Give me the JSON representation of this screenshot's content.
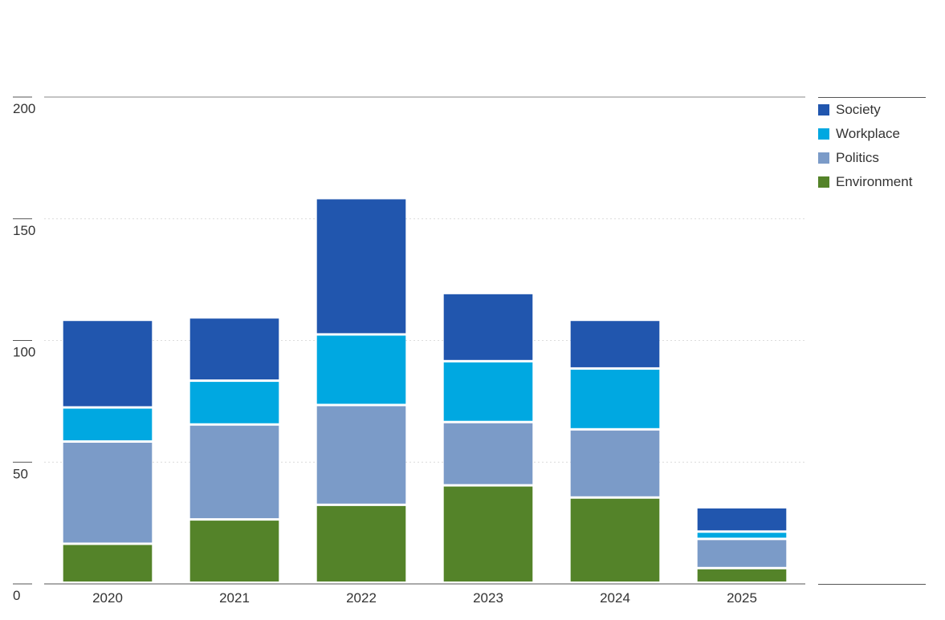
{
  "chart_data": {
    "type": "bar",
    "stacked": true,
    "categories": [
      "2020",
      "2021",
      "2022",
      "2023",
      "2024",
      "2025"
    ],
    "series": [
      {
        "name": "Environment",
        "color": "#548329",
        "values": [
          16,
          26,
          32,
          40,
          35,
          6
        ]
      },
      {
        "name": "Politics",
        "color": "#7b9bc8",
        "values": [
          42,
          39,
          41,
          26,
          28,
          12
        ]
      },
      {
        "name": "Workplace",
        "color": "#00a8e1",
        "values": [
          14,
          18,
          29,
          25,
          25,
          3
        ]
      },
      {
        "name": "Society",
        "color": "#2156ae",
        "values": [
          36,
          26,
          56,
          28,
          20,
          10
        ]
      }
    ],
    "yticks": [
      0,
      50,
      100,
      150,
      200
    ],
    "ylim": [
      0,
      200
    ],
    "grid": true,
    "legend_position": "top-right",
    "title": "",
    "xlabel": "",
    "ylabel": ""
  }
}
